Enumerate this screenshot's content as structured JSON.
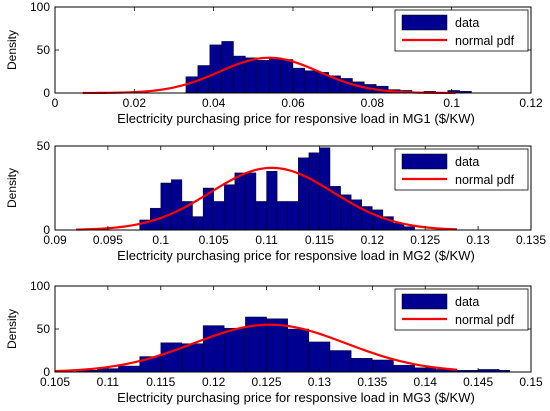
{
  "chart_data": [
    {
      "type": "bar",
      "title": "",
      "xlabel": "Electricity purchasing price for responsive load in MG1 ($/KW)",
      "ylabel": "Density",
      "xlim": [
        0,
        0.12
      ],
      "ylim": [
        0,
        100
      ],
      "xticks": [
        0,
        0.02,
        0.04,
        0.06,
        0.08,
        0.1,
        0.12
      ],
      "xtick_labels": [
        "0",
        "0.02",
        "0.04",
        "0.06",
        "0.08",
        "0.1",
        "0.12"
      ],
      "yticks": [
        0,
        50,
        100
      ],
      "ytick_labels": [
        "0",
        "50",
        "100"
      ],
      "grid": false,
      "legend_position": "top-right",
      "series": [
        {
          "name": "data",
          "type": "histogram",
          "color": "#000090",
          "bins": [
            [
              0.033,
              0.036,
              19
            ],
            [
              0.036,
              0.039,
              32
            ],
            [
              0.039,
              0.042,
              56
            ],
            [
              0.042,
              0.045,
              60
            ],
            [
              0.045,
              0.048,
              43
            ],
            [
              0.048,
              0.051,
              41
            ],
            [
              0.051,
              0.054,
              38
            ],
            [
              0.054,
              0.057,
              41
            ],
            [
              0.057,
              0.06,
              39
            ],
            [
              0.06,
              0.063,
              29
            ],
            [
              0.063,
              0.066,
              26
            ],
            [
              0.066,
              0.069,
              24
            ],
            [
              0.069,
              0.072,
              20
            ],
            [
              0.072,
              0.075,
              17
            ],
            [
              0.075,
              0.078,
              13
            ],
            [
              0.078,
              0.081,
              10
            ],
            [
              0.081,
              0.084,
              8
            ],
            [
              0.084,
              0.087,
              4
            ],
            [
              0.087,
              0.09,
              3
            ],
            [
              0.09,
              0.093,
              1
            ],
            [
              0.093,
              0.096,
              2
            ],
            [
              0.096,
              0.099,
              1
            ],
            [
              0.099,
              0.102,
              3
            ],
            [
              0.102,
              0.105,
              2
            ]
          ]
        },
        {
          "name": "normal pdf",
          "type": "line",
          "color": "#ff0000",
          "mu": 0.054,
          "sigma": 0.0125,
          "peak": 41,
          "xrange": [
            0.007,
            0.101
          ]
        }
      ]
    },
    {
      "type": "bar",
      "title": "",
      "xlabel": "Electricity purchasing price for responsive load in MG2 ($/KW)",
      "ylabel": "Density",
      "xlim": [
        0.09,
        0.135
      ],
      "ylim": [
        0,
        50
      ],
      "xticks": [
        0.09,
        0.095,
        0.1,
        0.105,
        0.11,
        0.115,
        0.12,
        0.125,
        0.13,
        0.135
      ],
      "xtick_labels": [
        "0.09",
        "0.095",
        "0.1",
        "0.105",
        "0.11",
        "0.115",
        "0.12",
        "0.125",
        "0.13",
        "0.135"
      ],
      "yticks": [
        0,
        50
      ],
      "ytick_labels": [
        "0",
        "50"
      ],
      "grid": false,
      "legend_position": "top-right",
      "series": [
        {
          "name": "data",
          "type": "histogram",
          "color": "#000090",
          "bins": [
            [
              0.098,
              0.099,
              6
            ],
            [
              0.099,
              0.1,
              13
            ],
            [
              0.1,
              0.101,
              28
            ],
            [
              0.101,
              0.102,
              30
            ],
            [
              0.102,
              0.103,
              17
            ],
            [
              0.103,
              0.104,
              8
            ],
            [
              0.104,
              0.105,
              25
            ],
            [
              0.105,
              0.106,
              17
            ],
            [
              0.106,
              0.107,
              27
            ],
            [
              0.107,
              0.108,
              34
            ],
            [
              0.108,
              0.109,
              34
            ],
            [
              0.109,
              0.11,
              17
            ],
            [
              0.11,
              0.111,
              35
            ],
            [
              0.111,
              0.112,
              17
            ],
            [
              0.112,
              0.113,
              17
            ],
            [
              0.113,
              0.114,
              43
            ],
            [
              0.114,
              0.115,
              46
            ],
            [
              0.115,
              0.116,
              49
            ],
            [
              0.116,
              0.117,
              26
            ],
            [
              0.117,
              0.118,
              21
            ],
            [
              0.118,
              0.119,
              18
            ],
            [
              0.119,
              0.12,
              14
            ],
            [
              0.12,
              0.121,
              12
            ],
            [
              0.121,
              0.122,
              8
            ],
            [
              0.122,
              0.123,
              4
            ],
            [
              0.123,
              0.124,
              2
            ]
          ]
        },
        {
          "name": "normal pdf",
          "type": "line",
          "color": "#ff0000",
          "mu": 0.1105,
          "sigma": 0.0058,
          "peak": 37,
          "xrange": [
            0.092,
            0.128
          ]
        }
      ]
    },
    {
      "type": "bar",
      "title": "",
      "xlabel": "Electricity purchasing price for responsive load in MG3 ($/KW)",
      "ylabel": "Density",
      "xlim": [
        0.105,
        0.15
      ],
      "ylim": [
        0,
        100
      ],
      "xticks": [
        0.105,
        0.11,
        0.115,
        0.12,
        0.125,
        0.13,
        0.135,
        0.14,
        0.145,
        0.15
      ],
      "xtick_labels": [
        "0.105",
        "0.11",
        "0.115",
        "0.12",
        "0.125",
        "0.13",
        "0.135",
        "0.14",
        "0.145",
        "0.15"
      ],
      "yticks": [
        0,
        50,
        100
      ],
      "ytick_labels": [
        "0",
        "50",
        "100"
      ],
      "grid": false,
      "legend_position": "top-right",
      "series": [
        {
          "name": "data",
          "type": "histogram",
          "color": "#000090",
          "bins": [
            [
              0.107,
              0.109,
              2
            ],
            [
              0.109,
              0.111,
              4
            ],
            [
              0.111,
              0.113,
              7
            ],
            [
              0.113,
              0.115,
              18
            ],
            [
              0.115,
              0.117,
              34
            ],
            [
              0.117,
              0.119,
              33
            ],
            [
              0.119,
              0.121,
              54
            ],
            [
              0.121,
              0.123,
              51
            ],
            [
              0.123,
              0.125,
              64
            ],
            [
              0.125,
              0.127,
              62
            ],
            [
              0.127,
              0.129,
              50
            ],
            [
              0.129,
              0.131,
              35
            ],
            [
              0.131,
              0.133,
              25
            ],
            [
              0.133,
              0.135,
              16
            ],
            [
              0.135,
              0.137,
              14
            ],
            [
              0.137,
              0.139,
              8
            ],
            [
              0.139,
              0.141,
              5
            ],
            [
              0.141,
              0.143,
              3
            ],
            [
              0.143,
              0.145,
              2
            ],
            [
              0.145,
              0.147,
              3
            ],
            [
              0.147,
              0.148,
              2
            ]
          ]
        },
        {
          "name": "normal pdf",
          "type": "line",
          "color": "#ff0000",
          "mu": 0.1253,
          "sigma": 0.0072,
          "peak": 55,
          "xrange": [
            0.105,
            0.143
          ]
        }
      ]
    }
  ]
}
